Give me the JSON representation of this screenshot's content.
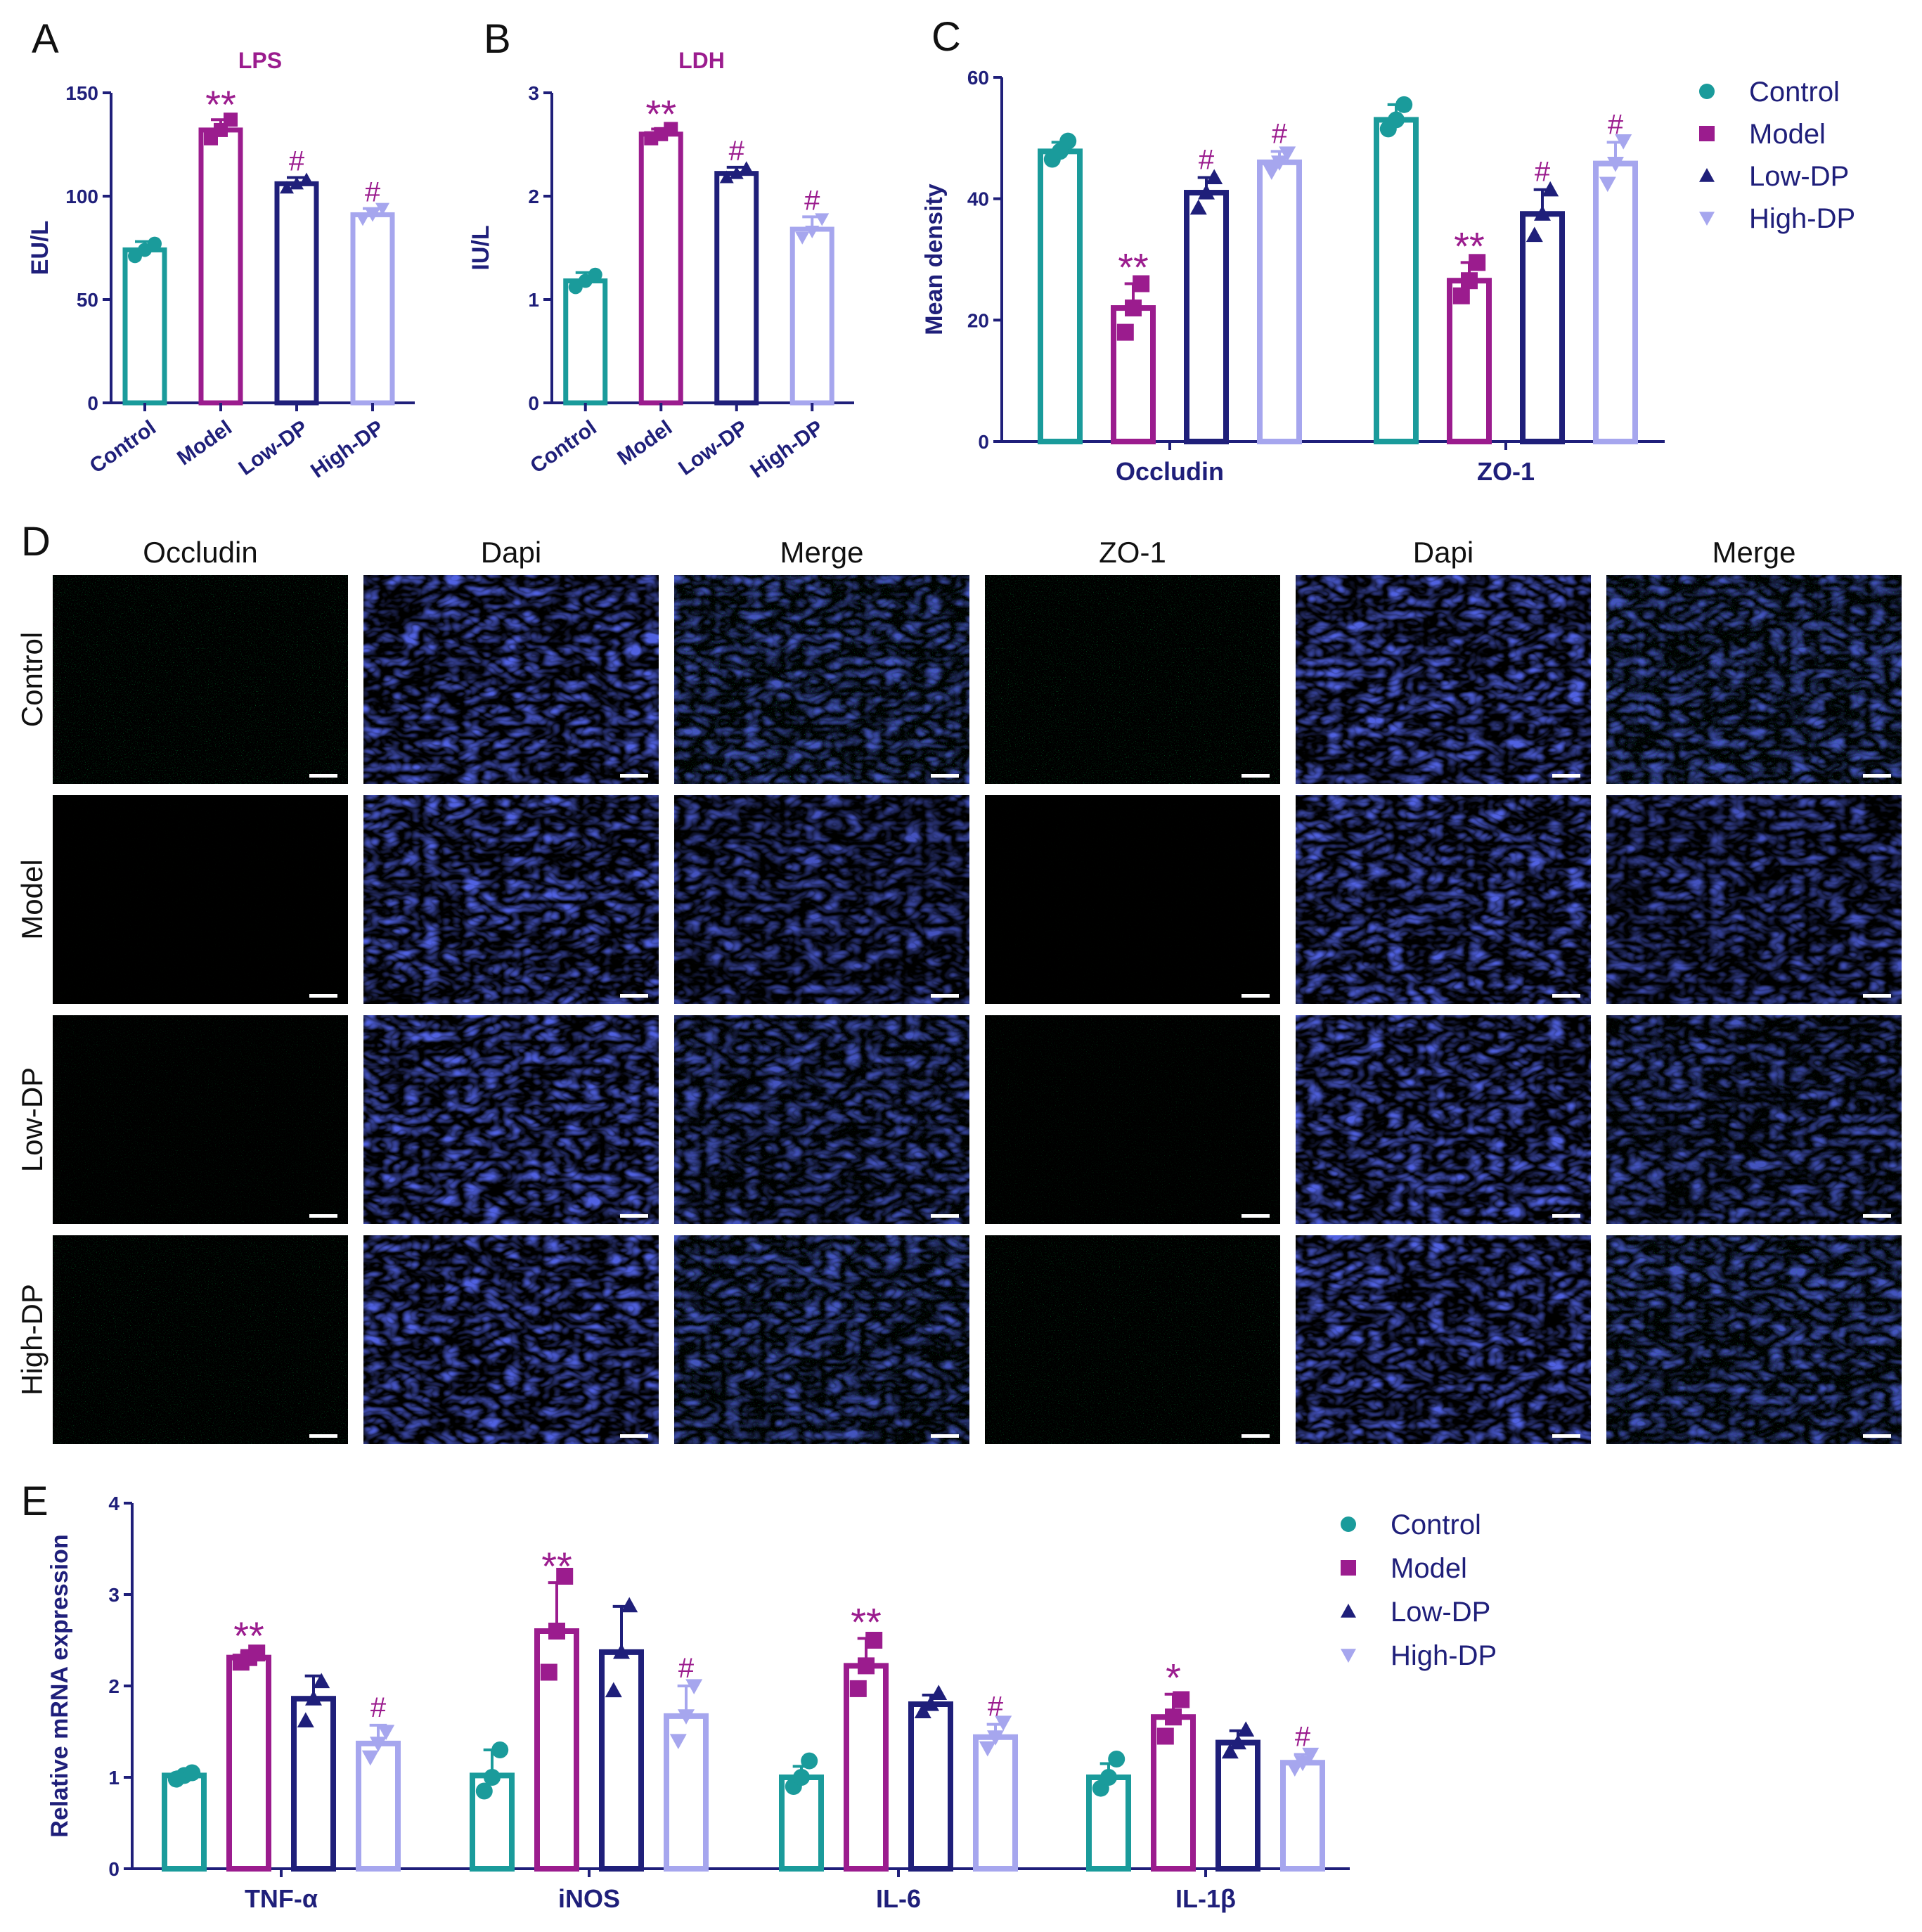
{
  "colors": {
    "Control": "#1a9b9b",
    "Model": "#9b1c8e",
    "Low-DP": "#1f1f7a",
    "High-DP": "#a6a6ee",
    "axis": "#1f1f7a"
  },
  "panels": {
    "A": "A",
    "B": "B",
    "C": "C",
    "D": "D",
    "E": "E"
  },
  "chart_data": [
    {
      "id": "A",
      "type": "bar",
      "title": "LPS",
      "ylabel": "EU/L",
      "ylim": [
        0,
        150
      ],
      "yticks": [
        0,
        50,
        100,
        150
      ],
      "categories": [
        "Control",
        "Model",
        "Low-DP",
        "High-DP"
      ],
      "values": [
        74,
        132,
        106,
        91
      ],
      "errors": [
        4,
        5,
        3,
        3
      ],
      "points": [
        [
          71,
          74,
          77
        ],
        [
          128,
          132,
          137
        ],
        [
          104,
          106,
          108
        ],
        [
          89,
          91,
          94
        ]
      ],
      "annotations": [
        "",
        "**",
        "#",
        "#"
      ]
    },
    {
      "id": "B",
      "type": "bar",
      "title": "LDH",
      "ylabel": "IU/L",
      "ylim": [
        0,
        3
      ],
      "yticks": [
        0,
        1,
        2,
        3
      ],
      "categories": [
        "Control",
        "Model",
        "Low-DP",
        "High-DP"
      ],
      "values": [
        1.18,
        2.6,
        2.22,
        1.68
      ],
      "errors": [
        0.08,
        0.05,
        0.06,
        0.12
      ],
      "points": [
        [
          1.12,
          1.18,
          1.24
        ],
        [
          2.56,
          2.6,
          2.65
        ],
        [
          2.18,
          2.22,
          2.27
        ],
        [
          1.6,
          1.66,
          1.78
        ]
      ],
      "annotations": [
        "",
        "**",
        "#",
        "#"
      ]
    },
    {
      "id": "C",
      "type": "bar",
      "ylabel": "Mean density",
      "ylim": [
        0,
        60
      ],
      "yticks": [
        0,
        20,
        40,
        60
      ],
      "categories": [
        "Occludin",
        "ZO-1"
      ],
      "series": [
        {
          "name": "Control",
          "values": [
            47.8,
            53
          ],
          "errors": [
            1.5,
            2.5
          ],
          "points": [
            [
              46.5,
              47.8,
              49.5
            ],
            [
              51.5,
              53,
              55.5
            ]
          ],
          "annotations": [
            "",
            ""
          ]
        },
        {
          "name": "Model",
          "values": [
            22,
            26.5
          ],
          "errors": [
            4,
            3
          ],
          "points": [
            [
              18,
              22,
              26
            ],
            [
              24,
              26.5,
              29.5
            ]
          ],
          "annotations": [
            "**",
            "**"
          ]
        },
        {
          "name": "Low-DP",
          "values": [
            41,
            37.5
          ],
          "errors": [
            2.5,
            4
          ],
          "points": [
            [
              38.5,
              41,
              43.5
            ],
            [
              34,
              37.5,
              41.5
            ]
          ],
          "annotations": [
            "#",
            "#"
          ]
        },
        {
          "name": "High-DP",
          "values": [
            46,
            45.8
          ],
          "errors": [
            1.8,
            3.5
          ],
          "points": [
            [
              44.5,
              46,
              47.5
            ],
            [
              42.5,
              45.8,
              49.5
            ]
          ],
          "annotations": [
            "#",
            "#"
          ]
        }
      ],
      "legend": "right"
    },
    {
      "id": "E",
      "type": "bar",
      "ylabel": "Relative mRNA expression",
      "ylim": [
        0,
        4
      ],
      "yticks": [
        0,
        1,
        2,
        3,
        4
      ],
      "categories": [
        "TNF-α",
        "iNOS",
        "IL-6",
        "IL-1β"
      ],
      "series": [
        {
          "name": "Control",
          "values": [
            1.02,
            1.02,
            1.0,
            1.0
          ],
          "errors": [
            0.04,
            0.28,
            0.12,
            0.15
          ],
          "points": [
            [
              0.98,
              1.02,
              1.05
            ],
            [
              0.85,
              1.0,
              1.3
            ],
            [
              0.9,
              1.0,
              1.18
            ],
            [
              0.88,
              1.0,
              1.2
            ]
          ],
          "annotations": [
            "",
            "",
            "",
            ""
          ]
        },
        {
          "name": "Model",
          "values": [
            2.31,
            2.6,
            2.22,
            1.66
          ],
          "errors": [
            0.06,
            0.53,
            0.3,
            0.25
          ],
          "points": [
            [
              2.26,
              2.31,
              2.36
            ],
            [
              2.15,
              2.6,
              3.2
            ],
            [
              1.97,
              2.22,
              2.5
            ],
            [
              1.45,
              1.66,
              1.85
            ]
          ],
          "annotations": [
            "**",
            "**",
            "**",
            "*"
          ]
        },
        {
          "name": "Low-DP",
          "values": [
            1.86,
            2.37,
            1.8,
            1.38
          ],
          "errors": [
            0.25,
            0.5,
            0.1,
            0.13
          ],
          "points": [
            [
              1.62,
              1.86,
              2.05
            ],
            [
              1.95,
              2.37,
              2.88
            ],
            [
              1.72,
              1.8,
              1.92
            ],
            [
              1.28,
              1.38,
              1.52
            ]
          ],
          "annotations": [
            "",
            "",
            "",
            ""
          ]
        },
        {
          "name": "High-DP",
          "values": [
            1.37,
            1.67,
            1.44,
            1.16
          ],
          "errors": [
            0.2,
            0.33,
            0.14,
            0.09
          ],
          "points": [
            [
              1.22,
              1.37,
              1.5
            ],
            [
              1.4,
              1.67,
              2.0
            ],
            [
              1.32,
              1.44,
              1.6
            ],
            [
              1.1,
              1.16,
              1.25
            ]
          ],
          "annotations": [
            "#",
            "#",
            "#",
            "#"
          ]
        }
      ],
      "legend": "right"
    }
  ],
  "micrographs": {
    "columns": [
      "Occludin",
      "Dapi",
      "Merge",
      "ZO-1",
      "Dapi",
      "Merge"
    ],
    "rows": [
      "Control",
      "Model",
      "Low-DP",
      "High-DP"
    ]
  }
}
